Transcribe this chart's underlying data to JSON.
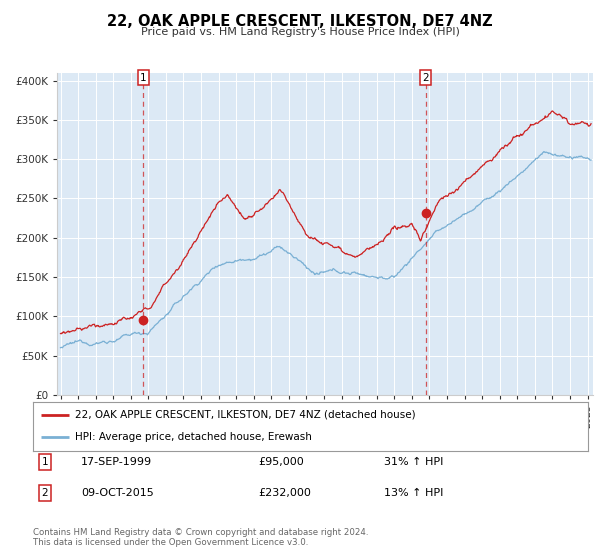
{
  "title": "22, OAK APPLE CRESCENT, ILKESTON, DE7 4NZ",
  "subtitle": "Price paid vs. HM Land Registry's House Price Index (HPI)",
  "plot_bg_color": "#dce9f5",
  "grid_color": "#ffffff",
  "red_line_color": "#cc2222",
  "blue_line_color": "#7ab0d4",
  "marker_color": "#cc2222",
  "legend_label_red": "22, OAK APPLE CRESCENT, ILKESTON, DE7 4NZ (detached house)",
  "legend_label_blue": "HPI: Average price, detached house, Erewash",
  "sale1_date_label": "17-SEP-1999",
  "sale1_price_label": "£95,000",
  "sale1_hpi_label": "31% ↑ HPI",
  "sale2_date_label": "09-OCT-2015",
  "sale2_price_label": "£232,000",
  "sale2_hpi_label": "13% ↑ HPI",
  "sale1_year": 1999.72,
  "sale1_price": 95000,
  "sale2_year": 2015.78,
  "sale2_price": 232000,
  "ylim": [
    0,
    410000
  ],
  "xlim_start": 1994.8,
  "xlim_end": 2025.3,
  "footnote": "Contains HM Land Registry data © Crown copyright and database right 2024.\nThis data is licensed under the Open Government Licence v3.0.",
  "yticks": [
    0,
    50000,
    100000,
    150000,
    200000,
    250000,
    300000,
    350000,
    400000
  ],
  "ytick_labels": [
    "£0",
    "£50K",
    "£100K",
    "£150K",
    "£200K",
    "£250K",
    "£300K",
    "£350K",
    "£400K"
  ]
}
